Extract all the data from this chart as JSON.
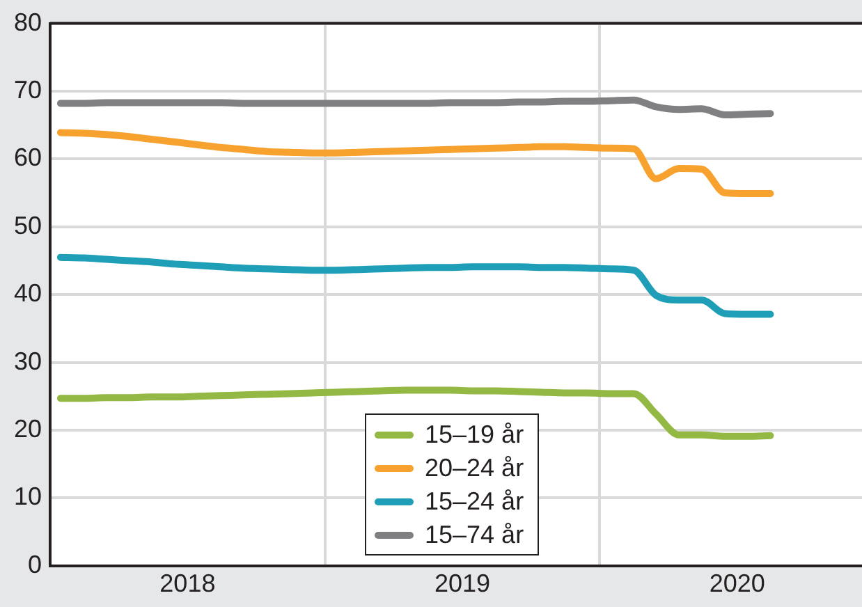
{
  "chart_data": {
    "type": "line",
    "x": [
      "2018-01-15",
      "2018-02-15",
      "2018-03-15",
      "2018-04-15",
      "2018-05-15",
      "2018-06-15",
      "2018-07-15",
      "2018-08-15",
      "2018-09-15",
      "2018-10-15",
      "2018-11-15",
      "2018-12-15",
      "2019-01-15",
      "2019-02-15",
      "2019-03-15",
      "2019-04-15",
      "2019-05-15",
      "2019-06-15",
      "2019-07-15",
      "2019-08-15",
      "2019-09-15",
      "2019-10-15",
      "2019-11-15",
      "2019-12-15",
      "2020-01-15",
      "2020-02-15",
      "2020-03-15",
      "2020-04-15",
      "2020-05-15",
      "2020-06-15",
      "2020-07-15",
      "2020-08-15"
    ],
    "series": [
      {
        "name": "15–19 år",
        "color": "#93b843",
        "values": [
          24.7,
          24.7,
          24.8,
          24.8,
          24.9,
          24.9,
          25.0,
          25.1,
          25.2,
          25.3,
          25.4,
          25.5,
          25.6,
          25.7,
          25.8,
          25.9,
          25.9,
          25.9,
          25.8,
          25.8,
          25.7,
          25.6,
          25.5,
          25.5,
          25.4,
          25.4,
          22.4,
          19.3,
          19.3,
          19.1,
          19.1,
          19.2
        ]
      },
      {
        "name": "20–24 år",
        "color": "#f7a12f",
        "values": [
          63.9,
          63.8,
          63.6,
          63.3,
          62.9,
          62.5,
          62.1,
          61.7,
          61.4,
          61.1,
          61.0,
          60.9,
          60.9,
          61.0,
          61.1,
          61.2,
          61.3,
          61.4,
          61.5,
          61.6,
          61.7,
          61.8,
          61.8,
          61.7,
          61.6,
          61.5,
          57.1,
          58.6,
          58.5,
          55.0,
          54.9,
          54.9
        ]
      },
      {
        "name": "15–24 år",
        "color": "#1f9fb7",
        "values": [
          45.5,
          45.4,
          45.2,
          45.0,
          44.8,
          44.5,
          44.3,
          44.1,
          43.9,
          43.8,
          43.7,
          43.6,
          43.6,
          43.7,
          43.8,
          43.9,
          44.0,
          44.0,
          44.1,
          44.1,
          44.1,
          44.0,
          44.0,
          43.9,
          43.8,
          43.6,
          39.9,
          39.2,
          39.2,
          37.2,
          37.1,
          37.1
        ]
      },
      {
        "name": "15–74 år",
        "color": "#808083",
        "values": [
          68.2,
          68.2,
          68.3,
          68.3,
          68.3,
          68.3,
          68.3,
          68.3,
          68.2,
          68.2,
          68.2,
          68.2,
          68.2,
          68.2,
          68.2,
          68.2,
          68.2,
          68.3,
          68.3,
          68.3,
          68.4,
          68.4,
          68.5,
          68.5,
          68.6,
          68.7,
          67.7,
          67.3,
          67.4,
          66.5,
          66.6,
          66.7
        ]
      }
    ],
    "xlim": [
      "2018-01-01",
      "2020-12-15"
    ],
    "xticks": [
      {
        "value": "2018-07-01",
        "label": "2018"
      },
      {
        "value": "2019-01-01",
        "label": null
      },
      {
        "value": "2019-07-01",
        "label": "2019"
      },
      {
        "value": "2020-01-01",
        "label": null
      },
      {
        "value": "2020-07-01",
        "label": "2020"
      }
    ],
    "ylim": [
      0,
      80
    ],
    "yticks": [
      0,
      10,
      20,
      30,
      40,
      50,
      60,
      70,
      80
    ],
    "grid": true,
    "legend": "bottom",
    "marker": "none",
    "line_style": "solid"
  }
}
